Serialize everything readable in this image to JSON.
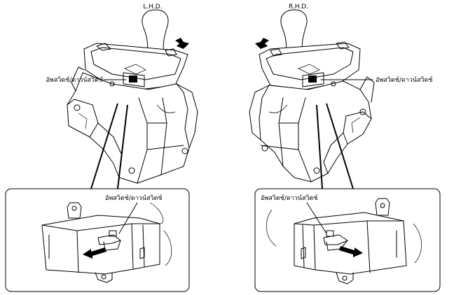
{
  "headers": {
    "left": "L.H.D.",
    "right": "R.H.D."
  },
  "labels": {
    "left_main": "อัพสวิตช์/ดาวน์สวิตช์",
    "right_main": "อัพสวิตช์/ดาวน์สวิตช์",
    "left_detail": "อัพสวิตช์/ดาวน์สวิตช์",
    "right_detail": "อัพสวิตช์/ดาวน์สวิตช์"
  }
}
